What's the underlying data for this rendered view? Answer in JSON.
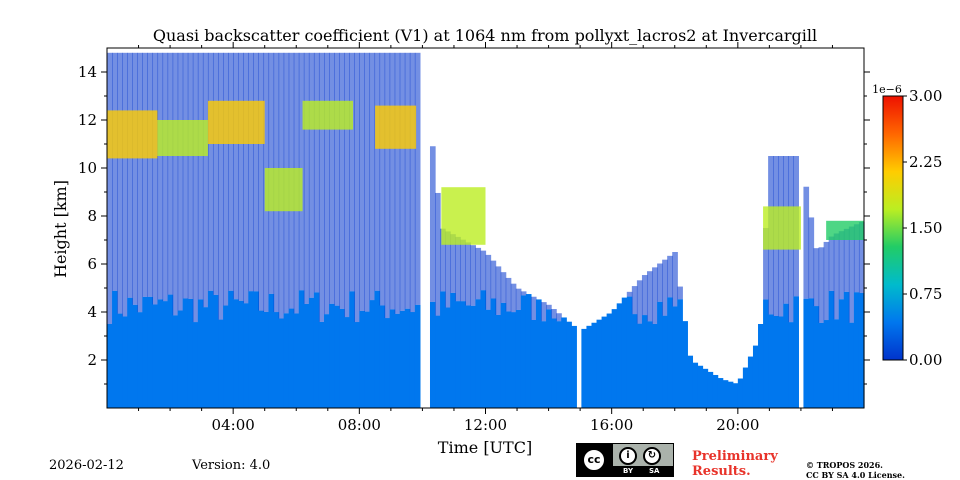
{
  "chart_data": {
    "type": "heatmap",
    "title": "Quasi backscatter coefficient (V1) at 1064 nm from pollyxt_lacros2 at Invercargill",
    "xlabel": "Time [UTC]",
    "ylabel": "Height [km]",
    "xlim": [
      0,
      24
    ],
    "ylim": [
      0,
      15
    ],
    "x_ticks": [
      4,
      8,
      12,
      16,
      20
    ],
    "x_tick_labels": [
      "04:00",
      "08:00",
      "12:00",
      "16:00",
      "20:00"
    ],
    "y_ticks": [
      2,
      4,
      6,
      8,
      10,
      12,
      14
    ],
    "y_tick_labels": [
      "2",
      "4",
      "6",
      "8",
      "10",
      "12",
      "14"
    ],
    "colorbar": {
      "min": 0.0,
      "max": 3.0,
      "scale_label": "1e−6",
      "ticks": [
        0.0,
        0.75,
        1.5,
        2.25,
        3.0
      ],
      "tick_labels": [
        "0.00",
        "0.75",
        "1.50",
        "2.25",
        "3.00"
      ],
      "colormap": [
        "#0033cc",
        "#0077ee",
        "#00bbcc",
        "#22cc66",
        "#bbee22",
        "#ffcc00",
        "#ff6600",
        "#ee1100"
      ]
    },
    "signal_top_km": [
      [
        0,
        14.8
      ],
      [
        2,
        14.8
      ],
      [
        4,
        14.8
      ],
      [
        6,
        14.8
      ],
      [
        8,
        14.8
      ],
      [
        10,
        14.8
      ],
      [
        10.6,
        7.5
      ],
      [
        12,
        6.5
      ],
      [
        13,
        5.0
      ],
      [
        14,
        4.3
      ],
      [
        15,
        3.2
      ],
      [
        16,
        4.0
      ],
      [
        17,
        5.5
      ],
      [
        18,
        6.5
      ],
      [
        18.5,
        2.0
      ],
      [
        19.5,
        1.2
      ],
      [
        20,
        1.0
      ],
      [
        20.7,
        3.0
      ],
      [
        21,
        10.5
      ],
      [
        22,
        10.5
      ],
      [
        22.5,
        6.5
      ],
      [
        23,
        7.2
      ],
      [
        24,
        7.8
      ]
    ],
    "clouds": [
      {
        "t0": 0.0,
        "t1": 1.6,
        "z0": 10.4,
        "z1": 12.4,
        "value": 2.2
      },
      {
        "t0": 1.6,
        "t1": 3.2,
        "z0": 10.5,
        "z1": 12.0,
        "value": 1.8
      },
      {
        "t0": 3.2,
        "t1": 5.0,
        "z0": 11.0,
        "z1": 12.8,
        "value": 2.0
      },
      {
        "t0": 5.0,
        "t1": 6.2,
        "z0": 8.2,
        "z1": 10.0,
        "value": 1.7
      },
      {
        "t0": 6.2,
        "t1": 7.8,
        "z0": 11.6,
        "z1": 12.8,
        "value": 1.9
      },
      {
        "t0": 8.5,
        "t1": 9.8,
        "z0": 10.8,
        "z1": 12.6,
        "value": 2.1
      },
      {
        "t0": 10.6,
        "t1": 12.0,
        "z0": 6.8,
        "z1": 9.2,
        "value": 1.5
      },
      {
        "t0": 20.8,
        "t1": 22.0,
        "z0": 6.6,
        "z1": 8.4,
        "value": 1.9
      },
      {
        "t0": 22.8,
        "t1": 24.0,
        "z0": 7.0,
        "z1": 7.8,
        "value": 1.4
      }
    ],
    "data_gaps_utc": [
      [
        10.0,
        10.3
      ],
      [
        14.9,
        15.1
      ],
      [
        21.9,
        22.1
      ]
    ]
  },
  "footer": {
    "date": "2026-02-12",
    "version": "Version: 4.0",
    "preliminary_line1": "Preliminary",
    "preliminary_line2": "Results.",
    "license_line1": "© TROPOS 2026.",
    "license_line2": "CC BY SA 4.0 License.",
    "cc_badge": {
      "cc": "cc",
      "by": "BY",
      "sa": "SA"
    }
  }
}
